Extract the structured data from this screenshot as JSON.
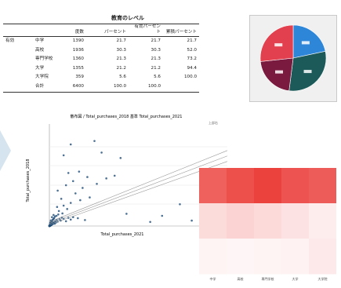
{
  "frequency_table": {
    "title": "教育のレベル",
    "columns": [
      "",
      "",
      "度数",
      "パーセント",
      "有効パーセント",
      "累積パーセント"
    ],
    "group_label": "有効",
    "rows": [
      {
        "category": "中学",
        "count": "1390",
        "percent": "21.7",
        "valid_percent": "21.7",
        "cumulative_percent": "21.7"
      },
      {
        "category": "高校",
        "count": "1936",
        "percent": "30.3",
        "valid_percent": "30.3",
        "cumulative_percent": "52.0"
      },
      {
        "category": "専門学校",
        "count": "1360",
        "percent": "21.3",
        "valid_percent": "21.3",
        "cumulative_percent": "73.2"
      },
      {
        "category": "大学",
        "count": "1355",
        "percent": "21.2",
        "valid_percent": "21.2",
        "cumulative_percent": "94.4"
      },
      {
        "category": "大学院",
        "count": "359",
        "percent": "5.6",
        "valid_percent": "5.6",
        "cumulative_percent": "100.0"
      },
      {
        "category": "合計",
        "count": "6400",
        "percent": "100.0",
        "valid_percent": "100.0",
        "cumulative_percent": ""
      }
    ]
  },
  "chart_data": [
    {
      "type": "pie",
      "slices": [
        {
          "label": "",
          "value": 21.7,
          "color": "#2e86d9"
        },
        {
          "label": "",
          "value": 30.3,
          "color": "#1c5a5a"
        },
        {
          "label": "",
          "value": 21.3,
          "color": "#7a1a3e"
        },
        {
          "label": "",
          "value": 26.7,
          "color": "#e3404f"
        }
      ]
    },
    {
      "type": "scatter",
      "title": "散布図 / Total_purchases_2018 基準 Total_purchases_2021",
      "xlabel": "Total_purchases_2021",
      "ylabel": "Total_purchases_2018",
      "legend": "上部右",
      "point_color": "#1f4e79",
      "fit_color": "#9a9a9a",
      "points": [
        [
          0.04,
          0.1
        ],
        [
          0.06,
          0.14
        ],
        [
          0.05,
          0.07
        ],
        [
          0.08,
          0.12
        ],
        [
          0.1,
          0.09
        ],
        [
          0.03,
          0.16
        ],
        [
          0.07,
          0.2
        ],
        [
          0.12,
          0.13
        ],
        [
          0.14,
          0.18
        ],
        [
          0.09,
          0.22
        ],
        [
          0.11,
          0.05
        ],
        [
          0.16,
          0.1
        ],
        [
          0.18,
          0.15
        ],
        [
          0.13,
          0.25
        ],
        [
          0.2,
          0.12
        ],
        [
          0.06,
          0.27
        ],
        [
          0.15,
          0.3
        ],
        [
          0.22,
          0.2
        ],
        [
          0.17,
          0.34
        ],
        [
          0.25,
          0.16
        ],
        [
          0.08,
          0.31
        ],
        [
          0.19,
          0.4
        ],
        [
          0.24,
          0.28
        ],
        [
          0.1,
          0.36
        ],
        [
          0.28,
          0.22
        ],
        [
          0.21,
          0.45
        ],
        [
          0.3,
          0.3
        ],
        [
          0.12,
          0.42
        ],
        [
          0.26,
          0.52
        ],
        [
          0.33,
          0.36
        ],
        [
          0.18,
          0.6
        ],
        [
          0.35,
          0.25
        ],
        [
          0.29,
          0.66
        ],
        [
          0.23,
          0.58
        ],
        [
          0.38,
          0.42
        ],
        [
          0.31,
          0.74
        ],
        [
          0.4,
          0.55
        ],
        [
          0.27,
          0.82
        ],
        [
          0.45,
          0.3
        ],
        [
          0.36,
          0.64
        ],
        [
          0.5,
          0.48
        ],
        [
          0.42,
          0.72
        ],
        [
          0.32,
          0.92
        ],
        [
          0.55,
          0.38
        ],
        [
          0.6,
          0.62
        ],
        [
          0.48,
          0.8
        ],
        [
          0.65,
          0.45
        ],
        [
          0.7,
          0.58
        ],
        [
          0.35,
          1.05
        ],
        [
          0.52,
          1.12
        ],
        [
          0.62,
          0.9
        ],
        [
          0.75,
          0.7
        ],
        [
          0.8,
          0.52
        ],
        [
          0.58,
          1.3
        ],
        [
          0.85,
          0.78
        ],
        [
          0.44,
          1.45
        ],
        [
          0.66,
          1.6
        ],
        [
          0.9,
          1.0
        ],
        [
          0.72,
          1.85
        ],
        [
          0.48,
          2.05
        ],
        [
          0.95,
          1.2
        ],
        [
          1.05,
          0.9
        ],
        [
          0.78,
          2.3
        ],
        [
          1.1,
          1.4
        ],
        [
          0.55,
          2.6
        ],
        [
          1.2,
          1.1
        ],
        [
          0.88,
          2.8
        ],
        [
          1.3,
          1.6
        ],
        [
          0.62,
          3.1
        ],
        [
          1.45,
          1.3
        ],
        [
          1.0,
          3.4
        ],
        [
          1.6,
          2.0
        ],
        [
          1.15,
          3.8
        ],
        [
          1.75,
          2.5
        ],
        [
          0.7,
          4.2
        ],
        [
          1.9,
          1.8
        ],
        [
          1.35,
          4.6
        ],
        [
          2.1,
          3.0
        ],
        [
          1.55,
          5.0
        ],
        [
          2.3,
          2.4
        ],
        [
          0.8,
          5.5
        ],
        [
          2.5,
          3.6
        ],
        [
          1.8,
          6.0
        ],
        [
          2.8,
          4.2
        ],
        [
          2.0,
          6.8
        ],
        [
          3.1,
          3.2
        ],
        [
          2.4,
          7.5
        ],
        [
          3.4,
          5.0
        ],
        [
          1.2,
          8.2
        ],
        [
          3.8,
          4.0
        ],
        [
          2.7,
          8.8
        ],
        [
          4.2,
          6.0
        ],
        [
          3.0,
          9.5
        ],
        [
          4.6,
          3.4
        ],
        [
          3.6,
          10.8
        ],
        [
          5.0,
          7.2
        ],
        [
          4.1,
          12.0
        ],
        [
          5.6,
          5.2
        ],
        [
          2.2,
          13.0
        ],
        [
          6.2,
          9.0
        ],
        [
          7.0,
          6.5
        ],
        [
          4.8,
          14.2
        ],
        [
          8.5,
          10.0
        ],
        [
          6.0,
          15.0
        ],
        [
          9.5,
          8.0
        ],
        [
          10.5,
          12.5
        ],
        [
          3.5,
          16.2
        ],
        [
          12.0,
          10.5
        ],
        [
          7.5,
          17.0
        ],
        [
          14.0,
          7.0
        ],
        [
          16.0,
          12.0
        ],
        [
          18.0,
          9.5
        ],
        [
          20.0,
          13.0
        ],
        [
          11.0,
          18.5
        ],
        [
          24.0,
          11.5
        ],
        [
          30.0,
          8.8
        ],
        [
          8.0,
          22.0
        ],
        [
          15.0,
          25.0
        ],
        [
          6.5,
          28.0
        ],
        [
          12.0,
          30.0
        ],
        [
          18.0,
          34.0
        ],
        [
          26.0,
          38.0
        ],
        [
          10.0,
          40.0
        ],
        [
          34.0,
          42.0
        ],
        [
          22.0,
          48.0
        ],
        [
          7.0,
          52.0
        ],
        [
          28.0,
          56.0
        ],
        [
          14.0,
          60.0
        ],
        [
          40.0,
          62.0
        ],
        [
          20.0,
          66.0
        ],
        [
          48.0,
          70.0
        ],
        [
          32.0,
          72.0
        ],
        [
          16.0,
          78.0
        ],
        [
          55.0,
          74.0
        ],
        [
          25.0,
          80.0
        ],
        [
          60.0,
          100.0
        ],
        [
          44.0,
          108.0
        ],
        [
          12.0,
          104.0
        ],
        [
          65.0,
          18.0
        ],
        [
          95.0,
          15.0
        ],
        [
          110.0,
          32.0
        ],
        [
          18.0,
          120.0
        ],
        [
          38.0,
          125.0
        ],
        [
          85.0,
          6.0
        ],
        [
          120.0,
          8.0
        ],
        [
          140.0,
          70.0
        ]
      ],
      "xlim": [
        0,
        150
      ],
      "ylim": [
        0,
        150
      ]
    },
    {
      "type": "heatmap",
      "categories": [
        "中学",
        "高校",
        "専門学校",
        "大学",
        "大学院"
      ],
      "row_labels": [
        "",
        "",
        ""
      ],
      "color": "#e8231e",
      "values": [
        [
          0.72,
          0.8,
          0.86,
          0.78,
          0.74
        ],
        [
          0.16,
          0.2,
          0.17,
          0.13,
          0.08
        ],
        [
          0.05,
          0.04,
          0.05,
          0.06,
          0.1
        ]
      ]
    }
  ]
}
